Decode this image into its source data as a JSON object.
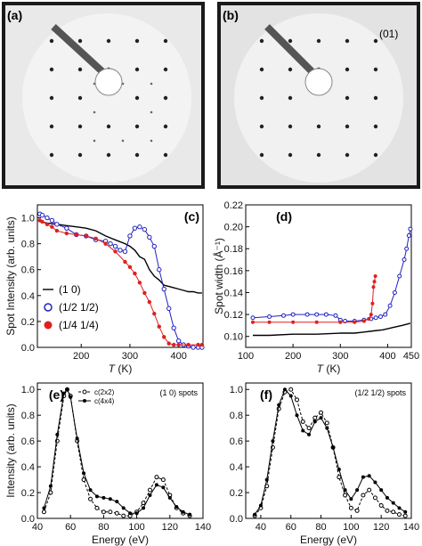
{
  "leed_images": [
    {
      "label": "(a)"
    },
    {
      "label": "(b)",
      "spot_annotation": "(01)"
    }
  ],
  "chart_data": [
    {
      "type": "scatter",
      "label": "(c)",
      "xlabel_var": "T",
      "xlabel_unit": "(K)",
      "ylabel": "Spot Intensity (arb. units)",
      "xlim": [
        110,
        450
      ],
      "ylim": [
        0,
        1.1
      ],
      "xticks": [
        100,
        200,
        300,
        400
      ],
      "yticks": [
        0.0,
        0.2,
        0.4,
        0.6,
        0.8,
        1.0
      ],
      "series": [
        {
          "name": "(1 0)",
          "color": "#000000",
          "marker": "line",
          "x": [
            115,
            130,
            150,
            170,
            190,
            210,
            230,
            250,
            270,
            290,
            300,
            310,
            320,
            330,
            340,
            350,
            360,
            370,
            380,
            390,
            400,
            410,
            420,
            430,
            440,
            448
          ],
          "y": [
            0.97,
            0.96,
            0.95,
            0.94,
            0.93,
            0.92,
            0.9,
            0.86,
            0.83,
            0.8,
            0.78,
            0.75,
            0.7,
            0.68,
            0.6,
            0.55,
            0.52,
            0.48,
            0.47,
            0.46,
            0.45,
            0.44,
            0.43,
            0.43,
            0.42,
            0.42
          ]
        },
        {
          "name": "(1/2 1/2)",
          "color": "#2020c0",
          "marker": "open-circle",
          "x": [
            115,
            120,
            130,
            140,
            150,
            170,
            190,
            210,
            230,
            250,
            260,
            270,
            280,
            290,
            300,
            310,
            320,
            330,
            340,
            350,
            360,
            370,
            380,
            390,
            400,
            410,
            420,
            430,
            440,
            448
          ],
          "y": [
            1.03,
            1.02,
            1.0,
            0.98,
            0.95,
            0.92,
            0.87,
            0.86,
            0.83,
            0.82,
            0.8,
            0.78,
            0.75,
            0.74,
            0.86,
            0.92,
            0.93,
            0.91,
            0.85,
            0.78,
            0.6,
            0.45,
            0.3,
            0.15,
            0.05,
            0.02,
            0.01,
            0.0,
            0.0,
            0.0
          ]
        },
        {
          "name": "(1/4 1/4)",
          "color": "#e02020",
          "marker": "filled-circle",
          "x": [
            115,
            120,
            130,
            140,
            150,
            170,
            190,
            210,
            230,
            250,
            270,
            290,
            300,
            310,
            320,
            330,
            340,
            350,
            360,
            370,
            380,
            390,
            400,
            420,
            440,
            448
          ],
          "y": [
            0.98,
            0.97,
            0.95,
            0.93,
            0.9,
            0.88,
            0.87,
            0.86,
            0.84,
            0.8,
            0.74,
            0.66,
            0.62,
            0.57,
            0.5,
            0.42,
            0.35,
            0.26,
            0.16,
            0.08,
            0.03,
            0.02,
            0.02,
            0.02,
            0.02,
            0.02
          ]
        }
      ]
    },
    {
      "type": "scatter",
      "label": "(d)",
      "xlabel_var": "T",
      "xlabel_unit": "(K)",
      "ylabel": "Spot width (Å⁻¹)",
      "xlim": [
        100,
        450
      ],
      "ylim": [
        0.09,
        0.22
      ],
      "xticks": [
        100,
        200,
        300,
        400,
        450
      ],
      "yticks": [
        0.1,
        0.12,
        0.14,
        0.16,
        0.18,
        0.2,
        0.22
      ],
      "series": [
        {
          "name": "(1 0)",
          "color": "#000000",
          "marker": "line",
          "x": [
            115,
            150,
            200,
            250,
            300,
            330,
            350,
            370,
            390,
            410,
            430,
            448
          ],
          "y": [
            0.101,
            0.101,
            0.102,
            0.102,
            0.103,
            0.103,
            0.104,
            0.105,
            0.106,
            0.108,
            0.11,
            0.112
          ]
        },
        {
          "name": "(1/2 1/2)",
          "color": "#2020c0",
          "marker": "open-circle",
          "x": [
            115,
            150,
            180,
            200,
            230,
            250,
            270,
            290,
            300,
            310,
            330,
            350,
            365,
            375,
            385,
            395,
            405,
            415,
            425,
            435,
            440,
            445,
            448
          ],
          "y": [
            0.117,
            0.118,
            0.119,
            0.12,
            0.12,
            0.12,
            0.12,
            0.119,
            0.115,
            0.114,
            0.114,
            0.115,
            0.116,
            0.117,
            0.118,
            0.12,
            0.128,
            0.14,
            0.155,
            0.17,
            0.18,
            0.192,
            0.198
          ]
        },
        {
          "name": "(1/4 1/4)",
          "color": "#e02020",
          "marker": "filled-circle",
          "x": [
            115,
            150,
            200,
            250,
            300,
            330,
            350,
            360,
            365,
            368,
            370,
            372,
            374
          ],
          "y": [
            0.113,
            0.113,
            0.113,
            0.113,
            0.113,
            0.113,
            0.114,
            0.116,
            0.12,
            0.13,
            0.145,
            0.15,
            0.155
          ]
        }
      ]
    },
    {
      "type": "line",
      "label": "(e)",
      "note": "(1 0) spots",
      "xlabel": "Energy (eV)",
      "ylabel": "Intensity (arb. units)",
      "xlim": [
        40,
        140
      ],
      "ylim": [
        0,
        1.05
      ],
      "xticks": [
        40,
        60,
        80,
        100,
        120,
        140
      ],
      "yticks": [
        0.0,
        0.2,
        0.4,
        0.6,
        0.8,
        1.0
      ],
      "series": [
        {
          "name": "c(2x2)",
          "color": "#000000",
          "marker": "open-circle",
          "dashed": true,
          "x": [
            44,
            48,
            52,
            56,
            58,
            60,
            64,
            68,
            72,
            76,
            80,
            84,
            88,
            92,
            96,
            100,
            104,
            108,
            112,
            116,
            120,
            124,
            128,
            132
          ],
          "y": [
            0.05,
            0.2,
            0.6,
            0.95,
            1.0,
            0.95,
            0.6,
            0.3,
            0.15,
            0.08,
            0.05,
            0.05,
            0.04,
            0.02,
            0.02,
            0.05,
            0.12,
            0.22,
            0.32,
            0.3,
            0.18,
            0.08,
            0.04,
            0.02
          ]
        },
        {
          "name": "c(4x4)",
          "color": "#000000",
          "marker": "filled-circle",
          "dashed": false,
          "x": [
            44,
            48,
            52,
            56,
            58,
            60,
            64,
            68,
            72,
            76,
            80,
            84,
            88,
            92,
            96,
            100,
            104,
            108,
            112,
            116,
            120,
            124,
            128,
            132
          ],
          "y": [
            0.08,
            0.25,
            0.65,
            0.97,
            1.0,
            0.94,
            0.62,
            0.35,
            0.22,
            0.17,
            0.16,
            0.15,
            0.13,
            0.08,
            0.04,
            0.04,
            0.08,
            0.18,
            0.26,
            0.24,
            0.16,
            0.09,
            0.05,
            0.03
          ]
        }
      ]
    },
    {
      "type": "line",
      "label": "(f)",
      "note": "(1/2 1/2) spots",
      "xlabel": "Energy (eV)",
      "ylabel": "",
      "xlim": [
        30,
        140
      ],
      "ylim": [
        0,
        1.05
      ],
      "xticks": [
        40,
        60,
        80,
        100,
        120,
        140
      ],
      "yticks": [
        0.0,
        0.2,
        0.4,
        0.6,
        0.8,
        1.0
      ],
      "series": [
        {
          "name": "c(2x2)",
          "color": "#000000",
          "marker": "open-circle",
          "dashed": true,
          "x": [
            36,
            40,
            44,
            48,
            52,
            56,
            60,
            64,
            68,
            72,
            76,
            80,
            84,
            88,
            92,
            96,
            100,
            104,
            108,
            112,
            116,
            120,
            124,
            128,
            132,
            136
          ],
          "y": [
            0.02,
            0.08,
            0.25,
            0.55,
            0.85,
            0.98,
            1.0,
            0.92,
            0.75,
            0.7,
            0.78,
            0.82,
            0.74,
            0.55,
            0.32,
            0.18,
            0.08,
            0.06,
            0.18,
            0.22,
            0.16,
            0.1,
            0.06,
            0.05,
            0.03,
            0.02
          ]
        },
        {
          "name": "c(4x4)",
          "color": "#000000",
          "marker": "filled-circle",
          "dashed": false,
          "x": [
            36,
            40,
            44,
            48,
            52,
            56,
            60,
            64,
            68,
            72,
            76,
            80,
            84,
            88,
            92,
            96,
            100,
            104,
            108,
            112,
            116,
            120,
            124,
            128,
            132,
            136
          ],
          "y": [
            0.03,
            0.1,
            0.3,
            0.6,
            0.88,
            1.0,
            0.95,
            0.8,
            0.68,
            0.65,
            0.75,
            0.78,
            0.7,
            0.55,
            0.38,
            0.22,
            0.15,
            0.22,
            0.32,
            0.33,
            0.28,
            0.22,
            0.16,
            0.12,
            0.08,
            0.05
          ]
        }
      ]
    }
  ]
}
